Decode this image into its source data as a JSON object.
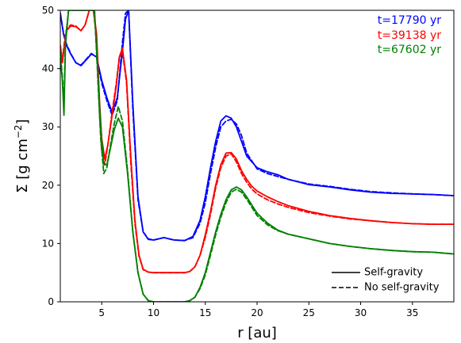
{
  "chart_data": {
    "type": "line",
    "title": "",
    "xlabel": "r [au]",
    "ylabel_main": "Σ [g cm",
    "ylabel_exp": "−2",
    "ylabel_close": "]",
    "xlim": [
      1.0,
      39.0
    ],
    "ylim": [
      0,
      50
    ],
    "xticks": [
      5,
      10,
      15,
      20,
      25,
      30,
      35
    ],
    "yticks": [
      0,
      10,
      20,
      30,
      40,
      50
    ],
    "grid": false,
    "time_labels": [
      {
        "text": "t=17790 yr",
        "color": "#0000ff"
      },
      {
        "text": "t=39138 yr",
        "color": "#ff0000"
      },
      {
        "text": "t=67602 yr",
        "color": "#008000"
      }
    ],
    "legend": {
      "position": "lower-right",
      "entries": [
        {
          "label": "Self-gravity",
          "linestyle": "solid"
        },
        {
          "label": "No self-gravity",
          "linestyle": "dashed"
        }
      ]
    },
    "series": [
      {
        "color": "#0000ff",
        "linestyle": "solid",
        "x": [
          1.0,
          1.3,
          1.6,
          2.0,
          2.5,
          3.0,
          3.5,
          4.0,
          4.5,
          5.0,
          5.5,
          6.0,
          6.5,
          7.0,
          7.3,
          7.6,
          8.0,
          8.5,
          9.0,
          9.5,
          10.0,
          11.0,
          12.0,
          13.0,
          13.8,
          14.5,
          15.0,
          15.5,
          16.0,
          16.5,
          17.0,
          17.5,
          18.0,
          18.5,
          19.0,
          20.0,
          21.0,
          22.0,
          23.0,
          25.0,
          27.0,
          29.0,
          31.0,
          33.0,
          35.0,
          37.0,
          39.0
        ],
        "y": [
          49.5,
          46.0,
          44.0,
          42.5,
          41.0,
          40.5,
          41.5,
          42.5,
          42.0,
          38.0,
          35.0,
          32.5,
          35.0,
          43.0,
          48.5,
          50.0,
          34.0,
          18.0,
          12.0,
          10.7,
          10.6,
          11.0,
          10.6,
          10.5,
          11.2,
          14.0,
          18.0,
          23.0,
          27.5,
          31.0,
          31.9,
          31.5,
          30.0,
          27.5,
          25.0,
          23.0,
          22.3,
          21.8,
          21.0,
          20.1,
          19.7,
          19.2,
          18.8,
          18.6,
          18.5,
          18.4,
          18.2
        ]
      },
      {
        "color": "#0000ff",
        "linestyle": "dashed",
        "x": [
          1.0,
          1.3,
          1.6,
          2.0,
          2.5,
          3.0,
          3.5,
          4.0,
          4.5,
          5.0,
          5.5,
          6.0,
          6.5,
          7.0,
          7.3,
          7.6,
          8.0,
          8.5,
          9.0,
          9.5,
          10.0,
          11.0,
          12.0,
          13.0,
          13.8,
          14.5,
          15.0,
          15.5,
          16.0,
          16.5,
          17.0,
          17.5,
          18.0,
          18.5,
          19.0,
          20.0,
          21.0,
          22.0,
          23.0,
          25.0,
          27.0,
          29.0,
          31.0,
          33.0,
          35.0,
          37.0,
          39.0
        ],
        "y": [
          49.5,
          46.2,
          44.2,
          42.6,
          41.0,
          40.6,
          41.6,
          42.6,
          42.0,
          37.5,
          34.5,
          32.0,
          34.5,
          44.5,
          49.5,
          50.0,
          33.0,
          17.5,
          12.0,
          10.8,
          10.6,
          11.0,
          10.6,
          10.5,
          11.0,
          13.5,
          17.0,
          22.0,
          26.5,
          30.0,
          31.0,
          31.3,
          30.5,
          28.5,
          25.5,
          22.8,
          22.0,
          21.5,
          21.0,
          20.2,
          19.8,
          19.3,
          18.9,
          18.7,
          18.5,
          18.4,
          18.2
        ]
      },
      {
        "color": "#ff0000",
        "linestyle": "solid",
        "x": [
          1.0,
          1.2,
          1.4,
          1.6,
          2.0,
          2.5,
          3.0,
          3.4,
          3.8,
          4.2,
          4.5,
          4.8,
          5.0,
          5.3,
          5.6,
          6.0,
          6.4,
          6.7,
          7.0,
          7.4,
          7.8,
          8.2,
          8.6,
          9.0,
          9.5,
          10.0,
          11.0,
          12.0,
          13.0,
          13.5,
          14.0,
          14.5,
          15.0,
          15.5,
          16.0,
          16.5,
          17.0,
          17.5,
          18.0,
          18.5,
          19.0,
          19.5,
          20.0,
          21.0,
          22.0,
          23.0,
          25.0,
          27.0,
          29.0,
          31.0,
          33.0,
          35.0,
          37.0,
          39.0
        ],
        "y": [
          44.0,
          41.0,
          44.0,
          46.5,
          47.3,
          47.2,
          46.5,
          47.5,
          50.0,
          50.0,
          46.0,
          34.0,
          28.0,
          24.5,
          27.0,
          32.0,
          37.0,
          42.0,
          43.5,
          38.0,
          25.0,
          14.0,
          8.0,
          5.6,
          5.1,
          5.0,
          5.0,
          5.0,
          5.0,
          5.2,
          6.0,
          8.0,
          11.5,
          15.5,
          20.0,
          23.5,
          25.5,
          25.6,
          24.5,
          22.5,
          21.0,
          19.8,
          19.0,
          18.0,
          17.2,
          16.5,
          15.5,
          14.8,
          14.3,
          13.9,
          13.6,
          13.4,
          13.3,
          13.3
        ]
      },
      {
        "color": "#ff0000",
        "linestyle": "dashed",
        "x": [
          1.0,
          1.2,
          1.4,
          1.6,
          2.0,
          2.5,
          3.0,
          3.4,
          3.8,
          4.2,
          4.5,
          4.8,
          5.0,
          5.3,
          5.6,
          6.0,
          6.4,
          6.7,
          7.0,
          7.4,
          7.8,
          8.2,
          8.6,
          9.0,
          9.5,
          10.0,
          11.0,
          12.0,
          13.0,
          13.5,
          14.0,
          14.5,
          15.0,
          15.5,
          16.0,
          16.5,
          17.0,
          17.5,
          18.0,
          18.5,
          19.0,
          19.5,
          20.0,
          21.0,
          22.0,
          23.0,
          25.0,
          27.0,
          29.0,
          31.0,
          33.0,
          35.0,
          37.0,
          39.0
        ],
        "y": [
          44.0,
          41.5,
          44.5,
          46.8,
          47.5,
          47.3,
          46.5,
          47.5,
          50.0,
          50.0,
          45.0,
          32.0,
          26.0,
          23.5,
          27.0,
          32.5,
          37.5,
          42.0,
          43.0,
          37.5,
          24.0,
          13.5,
          7.8,
          5.5,
          5.1,
          5.0,
          5.0,
          5.0,
          5.0,
          5.2,
          6.0,
          8.0,
          11.0,
          15.0,
          19.5,
          23.0,
          25.0,
          25.4,
          24.0,
          22.0,
          20.5,
          19.3,
          18.5,
          17.5,
          16.8,
          16.2,
          15.3,
          14.7,
          14.2,
          13.9,
          13.6,
          13.4,
          13.3,
          13.3
        ]
      },
      {
        "color": "#008000",
        "linestyle": "solid",
        "x": [
          1.0,
          1.2,
          1.35,
          1.5,
          1.8,
          2.1,
          2.5,
          3.0,
          3.5,
          4.0,
          4.3,
          4.6,
          4.9,
          5.2,
          5.5,
          5.8,
          6.2,
          6.6,
          7.0,
          7.5,
          8.0,
          8.5,
          9.0,
          9.5,
          10.0,
          11.0,
          12.0,
          13.0,
          13.5,
          14.0,
          14.5,
          15.0,
          15.5,
          16.0,
          16.5,
          17.0,
          17.5,
          18.0,
          18.5,
          19.0,
          20.0,
          21.0,
          22.0,
          23.0,
          25.0,
          27.0,
          29.0,
          31.0,
          33.0,
          35.0,
          37.0,
          39.0
        ],
        "y": [
          42.0,
          38.0,
          32.0,
          44.0,
          50.0,
          50.0,
          50.0,
          50.0,
          50.0,
          50.0,
          50.0,
          40.0,
          30.0,
          23.5,
          23.5,
          26.0,
          29.5,
          31.5,
          30.0,
          22.0,
          12.0,
          5.0,
          1.3,
          0.2,
          0.0,
          0.0,
          0.0,
          0.0,
          0.2,
          0.8,
          2.5,
          5.0,
          8.5,
          12.0,
          15.0,
          17.5,
          19.2,
          19.7,
          19.2,
          18.0,
          15.2,
          13.5,
          12.3,
          11.6,
          10.8,
          10.0,
          9.5,
          9.1,
          8.8,
          8.6,
          8.5,
          8.2
        ]
      },
      {
        "color": "#008000",
        "linestyle": "dashed",
        "x": [
          1.0,
          1.2,
          1.35,
          1.5,
          1.8,
          2.1,
          2.5,
          3.0,
          3.5,
          4.0,
          4.3,
          4.6,
          4.9,
          5.2,
          5.5,
          5.8,
          6.2,
          6.6,
          7.0,
          7.5,
          8.0,
          8.5,
          9.0,
          9.5,
          10.0,
          11.0,
          12.0,
          13.0,
          13.5,
          14.0,
          14.5,
          15.0,
          15.5,
          16.0,
          16.5,
          17.0,
          17.5,
          18.0,
          18.5,
          19.0,
          20.0,
          21.0,
          22.0,
          23.0,
          25.0,
          27.0,
          29.0,
          31.0,
          33.0,
          35.0,
          37.0,
          39.0
        ],
        "y": [
          43.0,
          38.5,
          34.0,
          45.0,
          50.0,
          50.0,
          50.0,
          50.0,
          50.0,
          50.0,
          50.0,
          39.0,
          28.0,
          22.0,
          23.0,
          26.5,
          30.5,
          33.5,
          31.0,
          22.5,
          12.0,
          5.0,
          1.3,
          0.2,
          0.0,
          0.0,
          0.0,
          0.0,
          0.2,
          0.8,
          2.3,
          4.6,
          8.0,
          11.5,
          14.5,
          17.0,
          18.8,
          19.3,
          18.8,
          17.6,
          14.8,
          13.2,
          12.2,
          11.6,
          10.8,
          10.0,
          9.5,
          9.1,
          8.8,
          8.6,
          8.5,
          8.2
        ]
      }
    ]
  }
}
